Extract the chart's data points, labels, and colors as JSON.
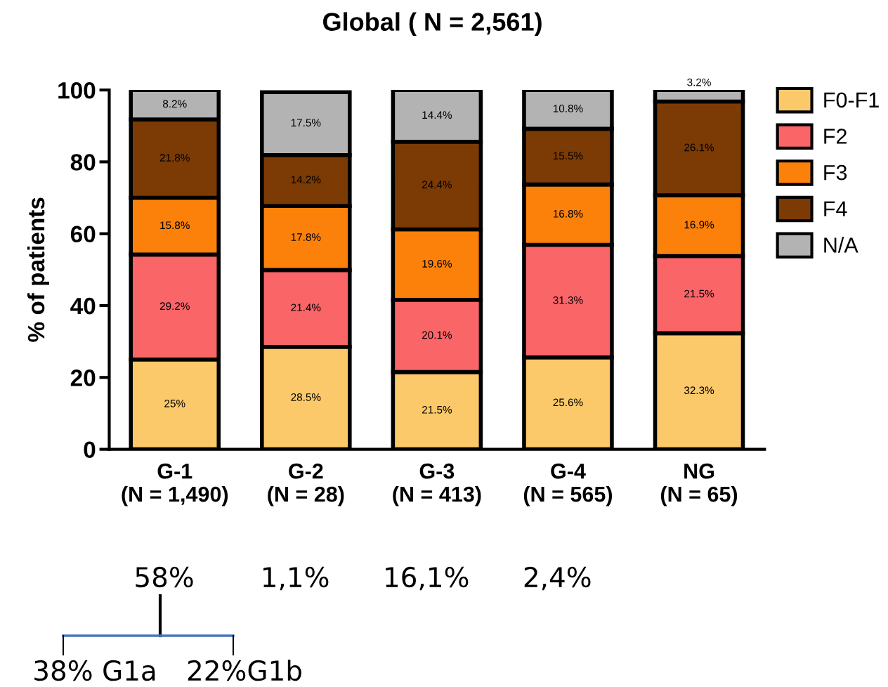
{
  "chart_data": {
    "type": "bar",
    "title": "Global ( N = 2,561)",
    "ylabel": "% of patients",
    "categories": [
      "G-1\n(N = 1,490)",
      "G-2\n(N = 28)",
      "G-3\n(N = 413)",
      "G-4\n(N = 565)",
      "NG\n(N = 65)"
    ],
    "stacked": true,
    "ylim": [
      0,
      100
    ],
    "yticks": [
      0,
      20,
      40,
      60,
      80,
      100
    ],
    "grid": false,
    "legend": "right",
    "series": [
      {
        "name": "F0-F1",
        "color": "#fbc96a",
        "values": [
          25,
          28.5,
          21.5,
          25.6,
          32.3
        ],
        "value_labels": [
          "25%",
          "28.5%",
          "21.5%",
          "25.6%",
          "32.3%"
        ]
      },
      {
        "name": "F2",
        "color": "#fa6568",
        "values": [
          29.2,
          21.4,
          20.1,
          31.3,
          21.5
        ],
        "value_labels": [
          "29.2%",
          "21.4%",
          "20.1%",
          "31.3%",
          "21.5%"
        ]
      },
      {
        "name": "F3",
        "color": "#fb810a",
        "values": [
          15.8,
          17.8,
          19.6,
          16.8,
          16.9
        ],
        "value_labels": [
          "15.8%",
          "17.8%",
          "19.6%",
          "16.8%",
          "16.9%"
        ]
      },
      {
        "name": "F4",
        "color": "#7c3b04",
        "values": [
          21.8,
          14.2,
          24.4,
          15.5,
          26.1
        ],
        "value_labels": [
          "21.8%",
          "14.2%",
          "24.4%",
          "15.5%",
          "26.1%"
        ]
      },
      {
        "name": "N/A",
        "color": "#b3b3b3",
        "values": [
          8.2,
          17.5,
          14.4,
          10.8,
          3.2
        ],
        "value_labels": [
          "8.2%",
          "17.5%",
          "14.4%",
          "10.8%",
          "3.2%"
        ]
      }
    ],
    "annotations": [
      "58%",
      "1,1%",
      "16,1%",
      "2,4%",
      "38% G1a",
      "22%G1b"
    ]
  }
}
